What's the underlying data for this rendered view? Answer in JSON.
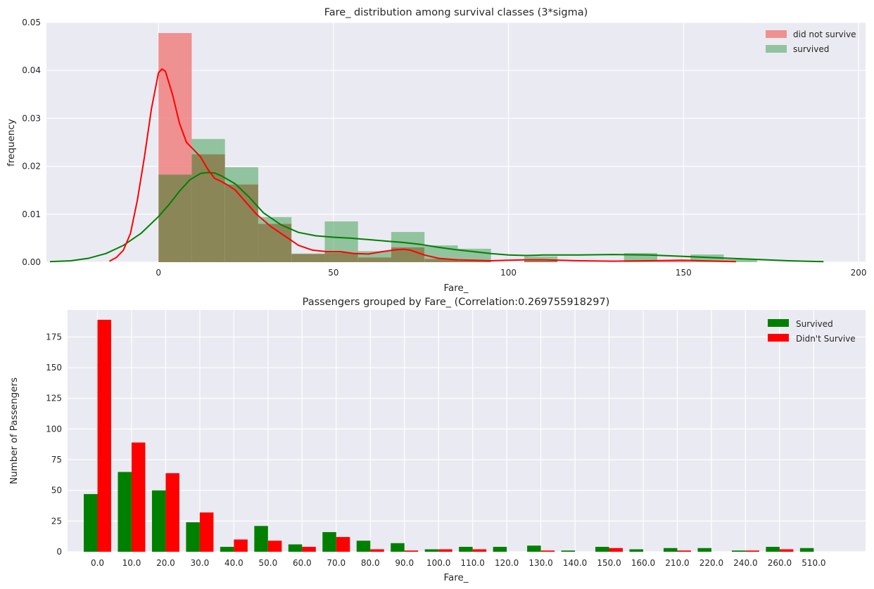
{
  "chart_data": [
    {
      "type": "histogram",
      "title": "Fare_ distribution among survival classes (3*sigma)",
      "xlabel": "Fare_",
      "ylabel": "frequency",
      "xlim": [
        -32,
        202
      ],
      "ylim": [
        0,
        0.05
      ],
      "x_ticks": [
        0,
        50,
        100,
        150,
        200
      ],
      "y_ticks": [
        "0.00",
        "0.01",
        "0.02",
        "0.03",
        "0.04",
        "0.05"
      ],
      "grid": true,
      "legend_position": "top-right",
      "bin_edges": [
        0,
        9.5,
        19,
        28.5,
        38,
        47.5,
        57,
        66.5,
        76,
        85.5,
        95,
        104.5,
        114,
        123.5,
        133,
        142.5,
        152,
        161.5,
        171
      ],
      "colors": {
        "did_not_survive": "#f08080",
        "survived": "#55a868",
        "kde_did_not_survive": "#ff0000",
        "kde_survived": "#008000",
        "overlap": "#8b8658"
      },
      "series": [
        {
          "name": "did not survive",
          "values": [
            0.0478,
            0.0225,
            0.0162,
            0.008,
            0.0017,
            0.002,
            0.001,
            0.0031,
            0.0007,
            0.0003,
            0.0,
            0.0003,
            0.0,
            0.0,
            0.0,
            0.0003,
            0.0,
            0.0
          ],
          "kde": [
            [
              -14,
              0.0002
            ],
            [
              -12,
              0.001
            ],
            [
              -10,
              0.0025
            ],
            [
              -8,
              0.006
            ],
            [
              -6,
              0.013
            ],
            [
              -4,
              0.022
            ],
            [
              -2,
              0.032
            ],
            [
              0,
              0.0395
            ],
            [
              1,
              0.0403
            ],
            [
              2,
              0.0398
            ],
            [
              4,
              0.035
            ],
            [
              6,
              0.029
            ],
            [
              8,
              0.025
            ],
            [
              10,
              0.0235
            ],
            [
              12,
              0.022
            ],
            [
              14,
              0.0195
            ],
            [
              16,
              0.0175
            ],
            [
              18,
              0.0168
            ],
            [
              20,
              0.016
            ],
            [
              22,
              0.015
            ],
            [
              25,
              0.0125
            ],
            [
              28,
              0.01
            ],
            [
              32,
              0.0075
            ],
            [
              36,
              0.0055
            ],
            [
              40,
              0.0035
            ],
            [
              44,
              0.0025
            ],
            [
              48,
              0.0022
            ],
            [
              52,
              0.0022
            ],
            [
              56,
              0.0018
            ],
            [
              60,
              0.0017
            ],
            [
              64,
              0.0022
            ],
            [
              68,
              0.0026
            ],
            [
              70,
              0.0027
            ],
            [
              72,
              0.0025
            ],
            [
              76,
              0.0015
            ],
            [
              80,
              0.0008
            ],
            [
              85,
              0.0005
            ],
            [
              90,
              0.0004
            ],
            [
              95,
              0.0003
            ],
            [
              100,
              0.0004
            ],
            [
              105,
              0.0005
            ],
            [
              110,
              0.0005
            ],
            [
              120,
              0.0003
            ],
            [
              130,
              0.0002
            ],
            [
              140,
              0.0003
            ],
            [
              150,
              0.0004
            ],
            [
              155,
              0.0003
            ],
            [
              160,
              0.0002
            ],
            [
              165,
              0.0001
            ]
          ]
        },
        {
          "name": "survived",
          "values": [
            0.0183,
            0.0257,
            0.0198,
            0.0094,
            0.0018,
            0.0085,
            0.0023,
            0.0063,
            0.0035,
            0.0028,
            0.0,
            0.0012,
            0.0,
            0.0,
            0.0019,
            0.0,
            0.0016,
            0.0006
          ],
          "kde": [
            [
              -31,
              0.0001
            ],
            [
              -25,
              0.0003
            ],
            [
              -20,
              0.0008
            ],
            [
              -15,
              0.0018
            ],
            [
              -10,
              0.0035
            ],
            [
              -5,
              0.006
            ],
            [
              0,
              0.0095
            ],
            [
              3,
              0.012
            ],
            [
              6,
              0.0148
            ],
            [
              9,
              0.0172
            ],
            [
              12,
              0.0185
            ],
            [
              14,
              0.0187
            ],
            [
              16,
              0.0186
            ],
            [
              18,
              0.018
            ],
            [
              22,
              0.0163
            ],
            [
              26,
              0.0135
            ],
            [
              30,
              0.0103
            ],
            [
              35,
              0.0078
            ],
            [
              40,
              0.0062
            ],
            [
              45,
              0.0055
            ],
            [
              50,
              0.0052
            ],
            [
              55,
              0.005
            ],
            [
              60,
              0.0047
            ],
            [
              65,
              0.0044
            ],
            [
              70,
              0.0041
            ],
            [
              75,
              0.0037
            ],
            [
              80,
              0.0031
            ],
            [
              85,
              0.0026
            ],
            [
              90,
              0.0022
            ],
            [
              95,
              0.0018
            ],
            [
              100,
              0.0015
            ],
            [
              105,
              0.0014
            ],
            [
              110,
              0.0015
            ],
            [
              120,
              0.0015
            ],
            [
              130,
              0.0016
            ],
            [
              140,
              0.0015
            ],
            [
              150,
              0.0012
            ],
            [
              160,
              0.0009
            ],
            [
              170,
              0.0006
            ],
            [
              180,
              0.0003
            ],
            [
              190,
              0.0001
            ]
          ]
        }
      ]
    },
    {
      "type": "bar",
      "title": "Passengers grouped by Fare_ (Correlation:0.269755918297)",
      "xlabel": "Fare_",
      "ylabel": "Number of Passengers",
      "ylim": [
        0,
        197
      ],
      "y_ticks": [
        0,
        25,
        50,
        75,
        100,
        125,
        150,
        175
      ],
      "grid": true,
      "legend_position": "top-right",
      "categories": [
        "0.0",
        "10.0",
        "20.0",
        "30.0",
        "40.0",
        "50.0",
        "60.0",
        "70.0",
        "80.0",
        "90.0",
        "100.0",
        "110.0",
        "120.0",
        "130.0",
        "140.0",
        "150.0",
        "160.0",
        "210.0",
        "220.0",
        "240.0",
        "260.0",
        "510.0"
      ],
      "series": [
        {
          "name": "Survived",
          "color": "#008000",
          "values": [
            47,
            65,
            50,
            24,
            4,
            21,
            6,
            16,
            9,
            7,
            2,
            4,
            4,
            5,
            1,
            4,
            2,
            3,
            3,
            1,
            4,
            3
          ]
        },
        {
          "name": "Didn't Survive",
          "color": "#ff0000",
          "values": [
            189,
            89,
            64,
            32,
            10,
            9,
            4,
            12,
            2,
            1,
            2,
            2,
            0,
            1,
            0,
            3,
            0,
            1,
            0,
            1,
            2,
            0
          ]
        }
      ]
    }
  ]
}
